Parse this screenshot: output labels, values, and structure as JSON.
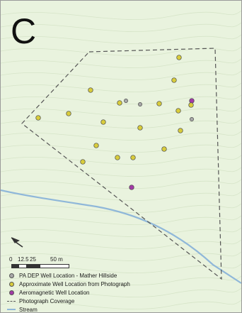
{
  "panel": {
    "letter": "C"
  },
  "map": {
    "colors": {
      "background": "#e9f3de",
      "contour": "#d6e4c8",
      "stream": "#8fb7d9",
      "coverage": "#555555",
      "pa_dep": "#a8a8a8",
      "approximate": "#d8cc3c",
      "aeromagnetic": "#a33aa6"
    },
    "layers": {
      "pa_dep": "PA DEP Well Location - Mather Hillside",
      "approximate": "Approximate Well Location from Photograph",
      "aeromagnetic": "Aeromagnetic Well Location",
      "coverage": "Photograph Coverage",
      "stream": "Stream"
    }
  },
  "scale": {
    "labels": [
      "0",
      "12.5",
      "25",
      "50 m"
    ]
  },
  "north_arrow": {
    "icon": "north-arrow-icon"
  },
  "legend": {
    "items": [
      {
        "label": "PA DEP Well Location - Mather Hillside",
        "symbol": "dot",
        "color": "#a8a8a8"
      },
      {
        "label": "Approximate Well Location from Photograph",
        "symbol": "dot",
        "color": "#d8cc3c"
      },
      {
        "label": "Aeromagnetic Well Location",
        "symbol": "dot",
        "color": "#a33aa6"
      },
      {
        "label": "Photograph Coverage",
        "symbol": "dashed-line",
        "color": "#555555"
      },
      {
        "label": "Stream",
        "symbol": "line",
        "color": "#8fb7d9"
      }
    ]
  }
}
